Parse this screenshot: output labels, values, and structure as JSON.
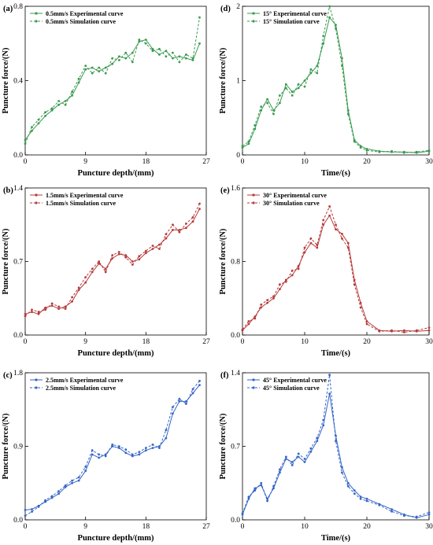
{
  "chart_data": [
    {
      "panel": "(a)",
      "type": "line",
      "xlabel": "Puncture depth/(mm)",
      "ylabel": "Puncture force/(N)",
      "xlim": [
        0,
        27
      ],
      "ylim": [
        0,
        0.8
      ],
      "xticks": [
        "0",
        "9",
        "18",
        "27"
      ],
      "yticks": [
        "0.0",
        "0.4",
        "0.8"
      ],
      "color": "#3a9a50",
      "series": [
        {
          "name": "0.5mm/s Experimental curve",
          "style": "solid",
          "x": [
            0,
            1,
            2,
            3,
            4,
            5,
            6,
            7,
            8,
            9,
            10,
            11,
            12,
            13,
            14,
            15,
            16,
            17,
            18,
            19,
            20,
            21,
            22,
            23,
            24,
            25,
            26
          ],
          "y": [
            0.08,
            0.13,
            0.17,
            0.21,
            0.24,
            0.27,
            0.29,
            0.32,
            0.39,
            0.46,
            0.47,
            0.45,
            0.47,
            0.49,
            0.53,
            0.52,
            0.55,
            0.61,
            0.62,
            0.57,
            0.54,
            0.56,
            0.52,
            0.53,
            0.52,
            0.51,
            0.6
          ]
        },
        {
          "name": "0.5mm/s Simulation curve",
          "style": "dashed",
          "x": [
            0,
            1,
            2,
            3,
            4,
            5,
            6,
            7,
            8,
            9,
            10,
            11,
            12,
            13,
            14,
            15,
            16,
            17,
            18,
            19,
            20,
            21,
            22,
            23,
            24,
            25,
            26
          ],
          "y": [
            0.06,
            0.15,
            0.19,
            0.23,
            0.25,
            0.29,
            0.27,
            0.34,
            0.41,
            0.48,
            0.44,
            0.47,
            0.44,
            0.52,
            0.51,
            0.55,
            0.5,
            0.62,
            0.6,
            0.56,
            0.57,
            0.53,
            0.55,
            0.5,
            0.54,
            0.52,
            0.74
          ]
        }
      ]
    },
    {
      "panel": "(b)",
      "type": "line",
      "xlabel": "Puncture depth/(mm)",
      "ylabel": "Puncture force/(N)",
      "xlim": [
        0,
        27
      ],
      "ylim": [
        0,
        1.4
      ],
      "xticks": [
        "0",
        "9",
        "18",
        "27"
      ],
      "yticks": [
        "0.0",
        "0.7",
        "1.4"
      ],
      "color": "#b83a3a",
      "series": [
        {
          "name": "1.5mm/s Experimental curve",
          "style": "solid",
          "x": [
            0,
            1,
            2,
            3,
            4,
            5,
            6,
            7,
            8,
            9,
            10,
            11,
            12,
            13,
            14,
            15,
            16,
            17,
            18,
            19,
            20,
            21,
            22,
            23,
            24,
            25,
            26
          ],
          "y": [
            0.2,
            0.22,
            0.2,
            0.26,
            0.28,
            0.25,
            0.27,
            0.32,
            0.43,
            0.5,
            0.6,
            0.68,
            0.63,
            0.73,
            0.77,
            0.76,
            0.7,
            0.72,
            0.78,
            0.82,
            0.86,
            0.92,
            1.0,
            1.0,
            1.02,
            1.08,
            1.2
          ]
        },
        {
          "name": "1.5mm/s Simulation curve",
          "style": "dashed",
          "x": [
            0,
            1,
            2,
            3,
            4,
            5,
            6,
            7,
            8,
            9,
            10,
            11,
            12,
            13,
            14,
            15,
            16,
            17,
            18,
            19,
            20,
            21,
            22,
            23,
            24,
            25,
            26
          ],
          "y": [
            0.18,
            0.24,
            0.22,
            0.24,
            0.3,
            0.27,
            0.25,
            0.36,
            0.45,
            0.55,
            0.63,
            0.7,
            0.6,
            0.76,
            0.79,
            0.74,
            0.67,
            0.75,
            0.8,
            0.85,
            0.82,
            0.96,
            1.05,
            0.98,
            1.06,
            1.12,
            1.25
          ]
        }
      ]
    },
    {
      "panel": "(c)",
      "type": "line",
      "xlabel": "Puncture depth/(mm)",
      "ylabel": "Puncture force/(N)",
      "xlim": [
        0,
        27
      ],
      "ylim": [
        0,
        1.8
      ],
      "xticks": [
        "0",
        "9",
        "18",
        "27"
      ],
      "yticks": [
        "0.0",
        "0.9",
        "1.8"
      ],
      "color": "#3565c8",
      "series": [
        {
          "name": "2.5mm/s Experimental curve",
          "style": "solid",
          "x": [
            0,
            1,
            2,
            3,
            4,
            5,
            6,
            7,
            8,
            9,
            10,
            11,
            12,
            13,
            14,
            15,
            16,
            17,
            18,
            19,
            20,
            21,
            22,
            23,
            24,
            25,
            26
          ],
          "y": [
            0.12,
            0.13,
            0.17,
            0.22,
            0.27,
            0.32,
            0.4,
            0.45,
            0.48,
            0.6,
            0.8,
            0.76,
            0.8,
            0.9,
            0.88,
            0.82,
            0.78,
            0.8,
            0.85,
            0.88,
            0.9,
            1.0,
            1.3,
            1.45,
            1.45,
            1.55,
            1.65
          ]
        },
        {
          "name": "2.5mm/s Simulation curve",
          "style": "dashed",
          "x": [
            0,
            1,
            2,
            3,
            4,
            5,
            6,
            7,
            8,
            9,
            10,
            11,
            12,
            13,
            14,
            15,
            16,
            17,
            18,
            19,
            20,
            21,
            22,
            23,
            24,
            25,
            26
          ],
          "y": [
            0.05,
            0.1,
            0.16,
            0.24,
            0.29,
            0.35,
            0.42,
            0.48,
            0.52,
            0.65,
            0.85,
            0.8,
            0.78,
            0.92,
            0.9,
            0.86,
            0.8,
            0.83,
            0.88,
            0.92,
            0.88,
            1.1,
            1.38,
            1.48,
            1.42,
            1.6,
            1.7
          ]
        }
      ]
    },
    {
      "panel": "(d)",
      "type": "line",
      "xlabel": "Time/(s)",
      "ylabel": "Puncture force/(N)",
      "xlim": [
        0,
        30
      ],
      "ylim": [
        0,
        2
      ],
      "xticks": [
        "0",
        "10",
        "20",
        "30"
      ],
      "yticks": [
        "0",
        "1",
        "2"
      ],
      "color": "#3a9a50",
      "series": [
        {
          "name": "15° Experimental curve",
          "style": "solid",
          "x": [
            0,
            1,
            2,
            3,
            4,
            5,
            6,
            7,
            8,
            9,
            10,
            11,
            12,
            13,
            14,
            15,
            16,
            17,
            18,
            19,
            20,
            22,
            24,
            26,
            28,
            30
          ],
          "y": [
            0.1,
            0.15,
            0.35,
            0.6,
            0.75,
            0.6,
            0.7,
            0.95,
            0.85,
            0.9,
            1.0,
            1.1,
            1.2,
            1.5,
            1.85,
            1.75,
            1.3,
            0.6,
            0.2,
            0.12,
            0.08,
            0.05,
            0.04,
            0.04,
            0.03,
            0.05
          ]
        },
        {
          "name": "15° Simulation curve",
          "style": "dashed",
          "x": [
            0,
            1,
            2,
            3,
            4,
            5,
            6,
            7,
            8,
            9,
            10,
            11,
            12,
            13,
            14,
            15,
            16,
            17,
            18,
            19,
            20,
            22,
            24,
            26,
            28,
            30
          ],
          "y": [
            0.12,
            0.18,
            0.4,
            0.65,
            0.7,
            0.55,
            0.8,
            0.9,
            0.8,
            0.95,
            0.92,
            1.15,
            1.1,
            1.6,
            2.0,
            1.7,
            1.2,
            0.55,
            0.18,
            0.1,
            0.06,
            0.04,
            0.05,
            0.03,
            0.04,
            0.06
          ]
        }
      ]
    },
    {
      "panel": "(e)",
      "type": "line",
      "xlabel": "Time/(s)",
      "ylabel": "Puncture force/(N)",
      "xlim": [
        0,
        30
      ],
      "ylim": [
        0,
        1.6
      ],
      "xticks": [
        "0",
        "10",
        "20",
        "30"
      ],
      "yticks": [
        "0.0",
        "0.8",
        "1.6"
      ],
      "color": "#b83a3a",
      "series": [
        {
          "name": "30° Experimental curve",
          "style": "solid",
          "x": [
            0,
            1,
            2,
            3,
            4,
            5,
            6,
            7,
            8,
            9,
            10,
            11,
            12,
            13,
            14,
            15,
            16,
            17,
            18,
            19,
            20,
            22,
            24,
            26,
            28,
            30
          ],
          "y": [
            0.05,
            0.12,
            0.2,
            0.3,
            0.35,
            0.4,
            0.5,
            0.6,
            0.65,
            0.75,
            0.9,
            1.0,
            0.95,
            1.2,
            1.3,
            1.15,
            1.1,
            1.0,
            0.6,
            0.35,
            0.15,
            0.05,
            0.04,
            0.05,
            0.04,
            0.05
          ]
        },
        {
          "name": "30° Simulation curve",
          "style": "dashed",
          "x": [
            0,
            1,
            2,
            3,
            4,
            5,
            6,
            7,
            8,
            9,
            10,
            11,
            12,
            13,
            14,
            15,
            16,
            17,
            18,
            19,
            20,
            22,
            24,
            26,
            28,
            30
          ],
          "y": [
            0.06,
            0.15,
            0.18,
            0.33,
            0.38,
            0.42,
            0.55,
            0.58,
            0.7,
            0.72,
            0.95,
            1.05,
            0.98,
            1.25,
            1.4,
            1.2,
            1.05,
            0.95,
            0.55,
            0.3,
            0.12,
            0.04,
            0.05,
            0.03,
            0.05,
            0.08
          ]
        }
      ]
    },
    {
      "panel": "(f)",
      "type": "line",
      "xlabel": "Time/(s)",
      "ylabel": "Puncture force/(N)",
      "xlim": [
        0,
        30
      ],
      "ylim": [
        0,
        1.4
      ],
      "xticks": [
        "0",
        "10",
        "20",
        "30"
      ],
      "yticks": [
        "0.0",
        "0.7",
        "1.4"
      ],
      "color": "#3565c8",
      "series": [
        {
          "name": "45°  Experimental curve",
          "style": "solid",
          "x": [
            0,
            1,
            2,
            3,
            4,
            5,
            6,
            7,
            8,
            9,
            10,
            11,
            12,
            13,
            14,
            15,
            16,
            17,
            18,
            19,
            20,
            22,
            24,
            26,
            28,
            30
          ],
          "y": [
            0.05,
            0.2,
            0.3,
            0.33,
            0.2,
            0.3,
            0.45,
            0.58,
            0.55,
            0.6,
            0.55,
            0.65,
            0.75,
            0.9,
            1.2,
            0.8,
            0.5,
            0.35,
            0.28,
            0.22,
            0.2,
            0.15,
            0.1,
            0.05,
            0.02,
            0.05
          ]
        },
        {
          "name": "45°  Simulation curve",
          "style": "dashed",
          "x": [
            0,
            1,
            2,
            3,
            4,
            5,
            6,
            7,
            8,
            9,
            10,
            11,
            12,
            13,
            14,
            15,
            16,
            17,
            18,
            19,
            20,
            22,
            24,
            26,
            28,
            30
          ],
          "y": [
            0.06,
            0.22,
            0.28,
            0.35,
            0.18,
            0.32,
            0.48,
            0.6,
            0.52,
            0.63,
            0.58,
            0.68,
            0.78,
            0.95,
            1.38,
            0.75,
            0.45,
            0.32,
            0.25,
            0.2,
            0.18,
            0.14,
            0.08,
            0.04,
            0.03,
            0.07
          ]
        }
      ]
    }
  ]
}
